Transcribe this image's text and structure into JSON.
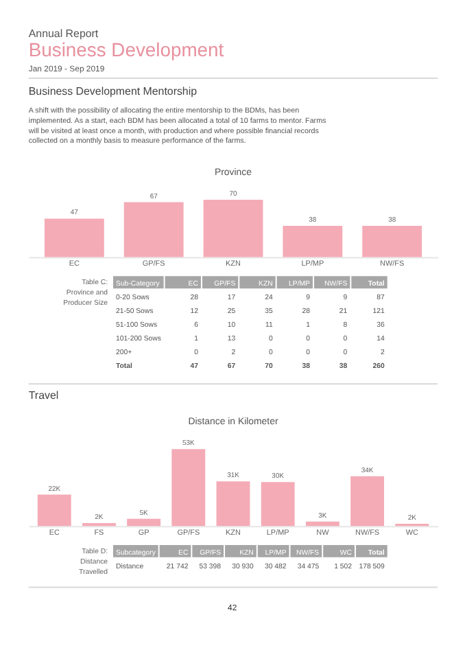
{
  "chart_data": [
    {
      "type": "bar",
      "title": "Province",
      "categories": [
        "EC",
        "GP/FS",
        "KZN",
        "LP/MP",
        "NW/FS"
      ],
      "values": [
        47,
        67,
        70,
        38,
        38
      ],
      "color": "#f4abb6",
      "data_labels": true,
      "tick_labels": "x",
      "annotations": [
        "Annual Report",
        "Business Development",
        "Jan 2019 - Sep 2019",
        "Business Development Mentorship",
        "A shift with the possibility of allocating the entire mentorship to the BDMs, has been implemented. As a start, each BDM has been allocated a total of 10 farms to mentor. Farms will be visited at least once a month, with production and where possible financial records collected on a monthly basis to measure performance of the farms.",
        "Table C: Province and Producer Size",
        "Sub-Category",
        "EC",
        "GP/FS",
        "KZN",
        "LP/MP",
        "NW/FS",
        "Total",
        "0-20 Sows",
        "28",
        "17",
        "24",
        "9",
        "9",
        "87",
        "21-50 Sows",
        "12",
        "25",
        "35",
        "28",
        "21",
        "121",
        "51-100 Sows",
        "6",
        "10",
        "11",
        "1",
        "8",
        "36",
        "101-200 Sows",
        "1",
        "13",
        "0",
        "0",
        "0",
        "14",
        "200+",
        "0",
        "2",
        "0",
        "0",
        "0",
        "2",
        "Total",
        "47",
        "67",
        "70",
        "38",
        "38",
        "260"
      ]
    },
    {
      "type": "bar",
      "title": "Distance in Kilometer",
      "categories": [
        "EC",
        "FS",
        "GP",
        "GP/FS",
        "KZN",
        "LP/MP",
        "NW",
        "NW/FS",
        "WC"
      ],
      "values": [
        21742,
        2000,
        5000,
        53398,
        30930,
        30482,
        3000,
        34475,
        1502
      ],
      "value_labels": [
        "22K",
        "2K",
        "5K",
        "53K",
        "31K",
        "30K",
        "3K",
        "34K",
        "2K"
      ],
      "color": "#f4abb6",
      "tick_labels": "x",
      "annotations": [
        "Travel",
        "Table D: Distance Travelled",
        "Subcategory",
        "EC",
        "GP/FS",
        "KZN",
        "LP/MP",
        "NW/FS",
        "WC",
        "Total",
        "Distance",
        "21 742",
        "53 398",
        "30 930",
        "30 482",
        "34 475",
        "1 502",
        "178 509",
        "42"
      ]
    }
  ]
}
